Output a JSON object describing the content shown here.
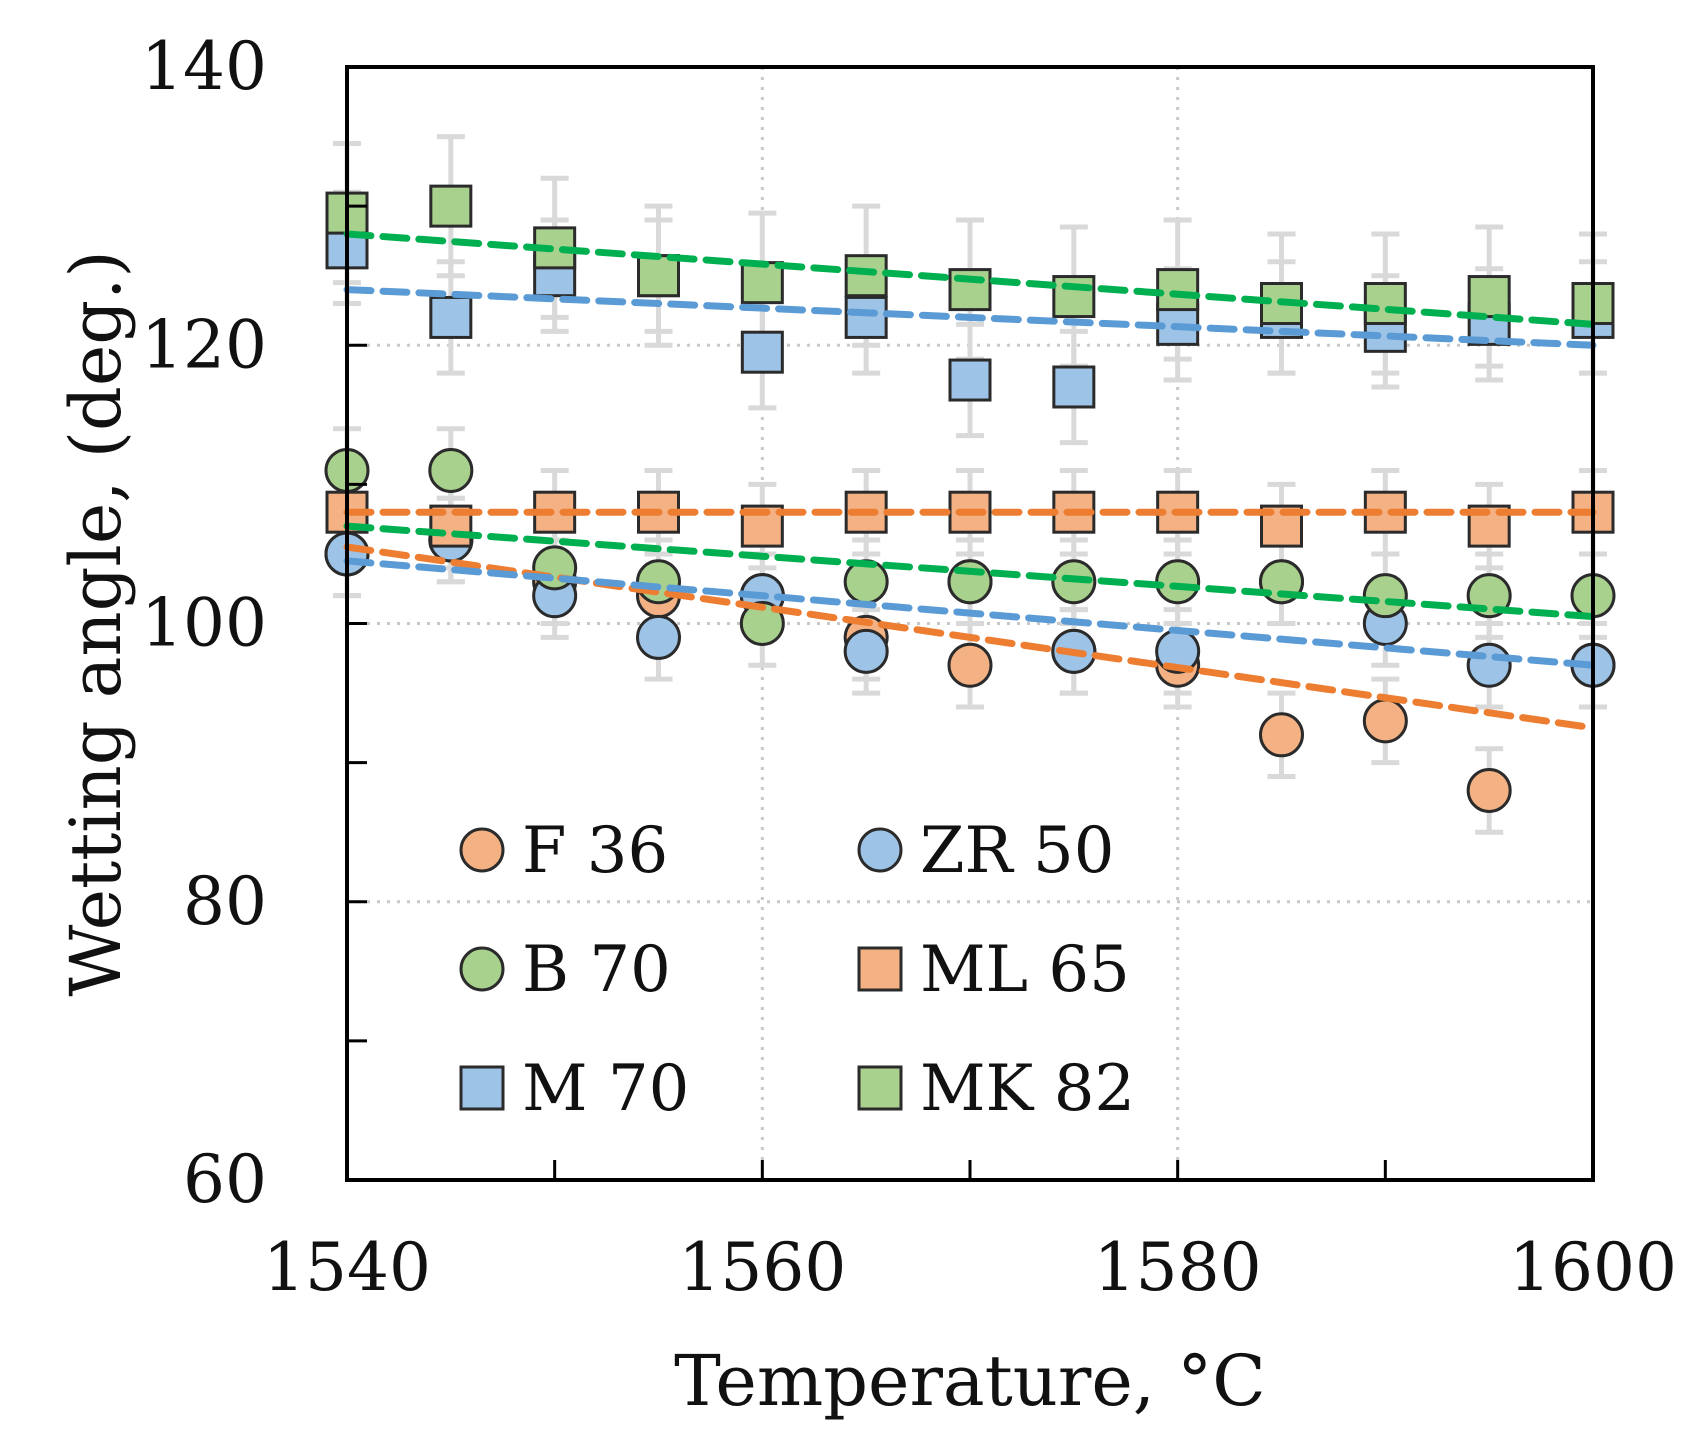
{
  "chart_data": {
    "type": "scatter",
    "title": "",
    "xlabel": "Temperature, °C",
    "ylabel": "Wetting angle, (deg.)",
    "xlim": [
      1540,
      1600
    ],
    "ylim": [
      60,
      140
    ],
    "xticks": [
      1540,
      1560,
      1580,
      1600
    ],
    "yticks": [
      60,
      80,
      100,
      120,
      140
    ],
    "yminor": [
      70,
      90,
      110,
      130
    ],
    "xminor": [
      1550,
      1570,
      1590
    ],
    "x": [
      1540,
      1545,
      1550,
      1555,
      1560,
      1565,
      1570,
      1575,
      1580,
      1585,
      1590,
      1595,
      1600
    ],
    "legend_position": "lower-left inside",
    "series": [
      {
        "name": "F 36",
        "marker": "circle",
        "color": "#f4b183",
        "trend_color": "#ed7d31",
        "values": [
          105,
          106,
          103,
          102,
          102,
          99,
          97,
          98,
          97,
          92,
          93,
          88,
          97
        ],
        "error": 3,
        "trend": [
          105.5,
          92.5
        ]
      },
      {
        "name": "ZR 50",
        "marker": "circle",
        "color": "#9dc3e6",
        "trend_color": "#5b9bd5",
        "values": [
          105,
          106,
          102,
          99,
          102,
          98,
          103,
          98,
          98,
          103,
          100,
          97,
          97
        ],
        "error": 3,
        "trend": [
          104.5,
          97
        ]
      },
      {
        "name": "B 70",
        "marker": "circle",
        "color": "#a9d18e",
        "trend_color": "#00b050",
        "values": [
          111,
          111,
          104,
          103,
          100,
          103,
          103,
          103,
          103,
          103,
          102,
          102,
          102
        ],
        "error": 3,
        "trend": [
          107,
          100.5
        ]
      },
      {
        "name": "ML 65",
        "marker": "square",
        "color": "#f4b183",
        "trend_color": "#ed7d31",
        "values": [
          108,
          107,
          108,
          108,
          107,
          108,
          108,
          108,
          108,
          107,
          108,
          107,
          108
        ],
        "error": 3,
        "trend": [
          108,
          108
        ]
      },
      {
        "name": "M 70",
        "marker": "square",
        "color": "#9dc3e6",
        "trend_color": "#5b9bd5",
        "values": [
          127,
          122,
          125,
          125,
          119.5,
          122,
          117.5,
          117,
          121.5,
          122,
          121,
          121.5,
          122
        ],
        "error": 4,
        "trend": [
          124,
          120
        ]
      },
      {
        "name": "MK 82",
        "marker": "square",
        "color": "#a9d18e",
        "trend_color": "#00b050",
        "values": [
          129.5,
          130,
          127,
          125,
          124.5,
          125,
          124,
          123.5,
          124,
          123,
          123,
          123.5,
          123
        ],
        "error": 5,
        "trend": [
          128,
          121.5
        ]
      }
    ]
  }
}
